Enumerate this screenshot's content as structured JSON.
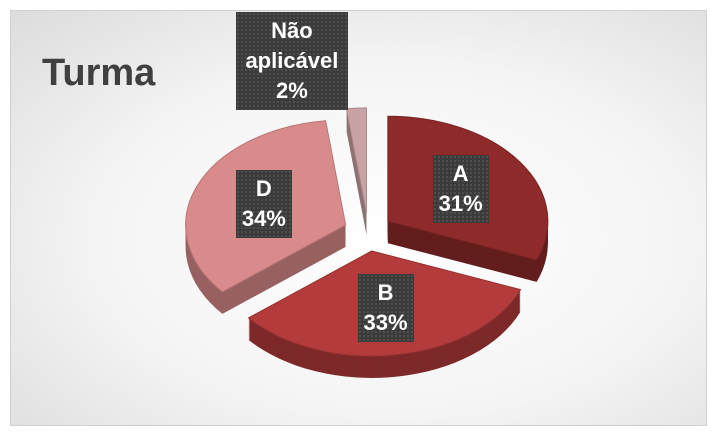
{
  "chart_data": {
    "type": "pie",
    "title": "Turma",
    "categories": [
      "A",
      "B",
      "D",
      "Não aplicável"
    ],
    "values": [
      31,
      33,
      34,
      2
    ],
    "value_labels": [
      "31%",
      "33%",
      "34%",
      "2%"
    ],
    "colors": [
      "#8e2a2a",
      "#b33b3b",
      "#d98a8a",
      "#c9a3a3"
    ]
  }
}
